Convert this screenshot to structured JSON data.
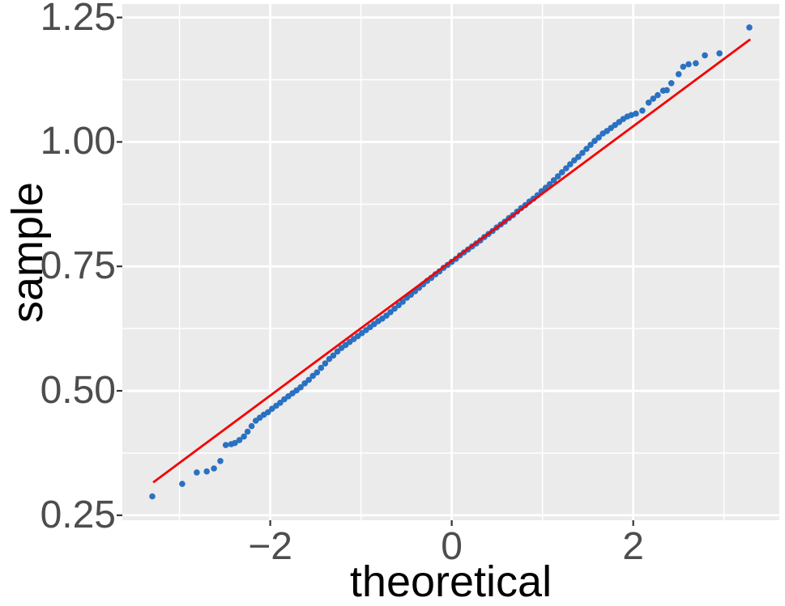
{
  "chart_data": {
    "type": "scatter",
    "subtype": "qq-plot",
    "title": "",
    "xlabel": "theoretical",
    "ylabel": "sample",
    "xlim": [
      -3.63,
      3.61
    ],
    "ylim": [
      0.24,
      1.277
    ],
    "grid": true,
    "legend": false,
    "x_ticks": [
      {
        "value": -2,
        "label": "−2"
      },
      {
        "value": 0,
        "label": "0"
      },
      {
        "value": 2,
        "label": "2"
      }
    ],
    "y_ticks": [
      {
        "value": 0.25,
        "label": "0.25"
      },
      {
        "value": 0.5,
        "label": "0.50"
      },
      {
        "value": 0.75,
        "label": "0.75"
      },
      {
        "value": 1.0,
        "label": "1.00"
      },
      {
        "value": 1.25,
        "label": "1.25"
      }
    ],
    "x_minor_ticks": [
      -3,
      -1,
      1,
      3
    ],
    "y_minor_ticks": [
      0.375,
      0.625,
      0.875,
      1.125
    ],
    "colors": {
      "panel_bg": "#EBEBEB",
      "grid": "#FFFFFF",
      "point": "#2A71C2",
      "reference_line": "#F40000",
      "tick_label": "#4D4D4D",
      "axis_title": "#000000",
      "tick_mark": "#333333"
    },
    "point_radius": 3.8,
    "reference_line": {
      "x1": -3.29,
      "y1": 0.316,
      "x2": 3.29,
      "y2": 1.206
    },
    "points": [
      [
        -3.3,
        0.288
      ],
      [
        -2.97,
        0.313
      ],
      [
        -2.81,
        0.336
      ],
      [
        -2.7,
        0.338
      ],
      [
        -2.62,
        0.344
      ],
      [
        -2.55,
        0.359
      ],
      [
        -2.49,
        0.391
      ],
      [
        -2.43,
        0.393
      ],
      [
        -2.39,
        0.395
      ],
      [
        -2.34,
        0.401
      ],
      [
        -2.29,
        0.408
      ],
      [
        -2.25,
        0.418
      ],
      [
        -2.205,
        0.429
      ],
      [
        -2.16,
        0.44
      ],
      [
        -2.115,
        0.446
      ],
      [
        -2.07,
        0.452
      ],
      [
        -2.025,
        0.457
      ],
      [
        -1.98,
        0.464
      ],
      [
        -1.935,
        0.47
      ],
      [
        -1.89,
        0.476
      ],
      [
        -1.845,
        0.483
      ],
      [
        -1.8,
        0.489
      ],
      [
        -1.755,
        0.495
      ],
      [
        -1.71,
        0.501
      ],
      [
        -1.665,
        0.507
      ],
      [
        -1.62,
        0.515
      ],
      [
        -1.575,
        0.522
      ],
      [
        -1.53,
        0.53
      ],
      [
        -1.485,
        0.537
      ],
      [
        -1.44,
        0.546
      ],
      [
        -1.395,
        0.555
      ],
      [
        -1.35,
        0.564
      ],
      [
        -1.305,
        0.571
      ],
      [
        -1.26,
        0.579
      ],
      [
        -1.215,
        0.586
      ],
      [
        -1.17,
        0.592
      ],
      [
        -1.125,
        0.598
      ],
      [
        -1.08,
        0.604
      ],
      [
        -1.035,
        0.61
      ],
      [
        -0.99,
        0.616
      ],
      [
        -0.945,
        0.622
      ],
      [
        -0.9,
        0.628
      ],
      [
        -0.855,
        0.634
      ],
      [
        -0.81,
        0.64
      ],
      [
        -0.765,
        0.645
      ],
      [
        -0.72,
        0.651
      ],
      [
        -0.675,
        0.658
      ],
      [
        -0.63,
        0.665
      ],
      [
        -0.585,
        0.672
      ],
      [
        -0.54,
        0.679
      ],
      [
        -0.495,
        0.687
      ],
      [
        -0.45,
        0.693
      ],
      [
        -0.405,
        0.7
      ],
      [
        -0.36,
        0.707
      ],
      [
        -0.315,
        0.714
      ],
      [
        -0.27,
        0.721
      ],
      [
        -0.225,
        0.727
      ],
      [
        -0.18,
        0.734
      ],
      [
        -0.135,
        0.74
      ],
      [
        -0.09,
        0.747
      ],
      [
        -0.045,
        0.753
      ],
      [
        0.0,
        0.759
      ],
      [
        0.045,
        0.765
      ],
      [
        0.09,
        0.772
      ],
      [
        0.135,
        0.778
      ],
      [
        0.18,
        0.784
      ],
      [
        0.225,
        0.79
      ],
      [
        0.27,
        0.796
      ],
      [
        0.315,
        0.802
      ],
      [
        0.36,
        0.809
      ],
      [
        0.405,
        0.815
      ],
      [
        0.45,
        0.821
      ],
      [
        0.495,
        0.828
      ],
      [
        0.54,
        0.834
      ],
      [
        0.585,
        0.84
      ],
      [
        0.63,
        0.847
      ],
      [
        0.675,
        0.853
      ],
      [
        0.72,
        0.86
      ],
      [
        0.765,
        0.867
      ],
      [
        0.81,
        0.873
      ],
      [
        0.855,
        0.88
      ],
      [
        0.9,
        0.886
      ],
      [
        0.945,
        0.893
      ],
      [
        0.99,
        0.901
      ],
      [
        1.035,
        0.908
      ],
      [
        1.08,
        0.915
      ],
      [
        1.125,
        0.923
      ],
      [
        1.17,
        0.931
      ],
      [
        1.215,
        0.939
      ],
      [
        1.26,
        0.947
      ],
      [
        1.305,
        0.955
      ],
      [
        1.35,
        0.963
      ],
      [
        1.395,
        0.97
      ],
      [
        1.44,
        0.978
      ],
      [
        1.485,
        0.986
      ],
      [
        1.53,
        0.994
      ],
      [
        1.575,
        1.002
      ],
      [
        1.62,
        1.009
      ],
      [
        1.665,
        1.017
      ],
      [
        1.71,
        1.022
      ],
      [
        1.755,
        1.028
      ],
      [
        1.8,
        1.034
      ],
      [
        1.845,
        1.04
      ],
      [
        1.89,
        1.046
      ],
      [
        1.935,
        1.051
      ],
      [
        1.98,
        1.054
      ],
      [
        2.03,
        1.057
      ],
      [
        2.1,
        1.063
      ],
      [
        2.17,
        1.079
      ],
      [
        2.22,
        1.087
      ],
      [
        2.27,
        1.094
      ],
      [
        2.33,
        1.103
      ],
      [
        2.37,
        1.104
      ],
      [
        2.42,
        1.118
      ],
      [
        2.5,
        1.136
      ],
      [
        2.55,
        1.151
      ],
      [
        2.61,
        1.156
      ],
      [
        2.69,
        1.158
      ],
      [
        2.79,
        1.174
      ],
      [
        2.95,
        1.178
      ],
      [
        3.28,
        1.23
      ]
    ]
  }
}
